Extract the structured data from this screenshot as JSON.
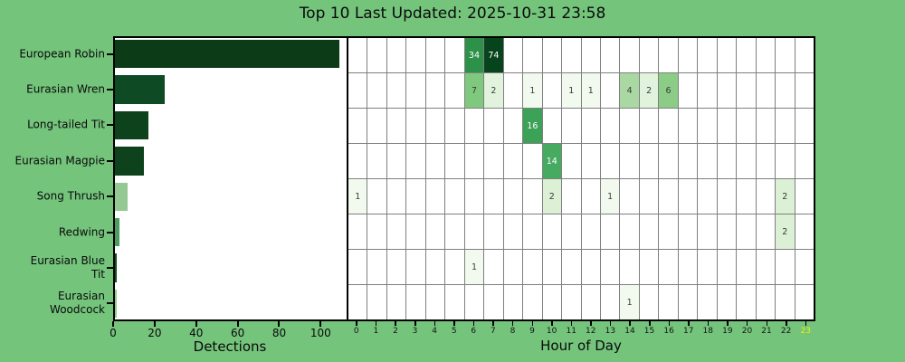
{
  "title": "Top 10 Last Updated: 2025-10-31 23:58",
  "colors": {
    "background": "#74c47c",
    "panel_bg": "#ffffff",
    "grid_line": "#7f7f7f",
    "spine": "#000000",
    "text": "#0a0a0a",
    "hour_highlight": "#ecf000"
  },
  "bar_chart": {
    "xlabel": "Detections",
    "x_ticks": [
      0,
      20,
      40,
      60,
      80,
      100
    ]
  },
  "heatmap": {
    "xlabel": "Hour of Day",
    "hour_labels": [
      "0",
      "1",
      "2",
      "3",
      "4",
      "5",
      "6",
      "7",
      "8",
      "9",
      "10",
      "11",
      "12",
      "13",
      "14",
      "15",
      "16",
      "17",
      "18",
      "19",
      "20",
      "21",
      "22",
      "23"
    ],
    "highlighted_hour": 23
  },
  "chart_data": [
    {
      "type": "bar",
      "orientation": "horizontal",
      "title": "Top 10 Last Updated: 2025-10-31 23:58",
      "categories": [
        "European Robin",
        "Eurasian Wren",
        "Long-tailed Tit",
        "Eurasian Magpie",
        "Song Thrush",
        "Redwing",
        "Eurasian Blue Tit",
        "Eurasian Woodcock"
      ],
      "category_label_lines": [
        [
          "European Robin"
        ],
        [
          "Eurasian Wren"
        ],
        [
          "Long-tailed Tit"
        ],
        [
          "Eurasian Magpie"
        ],
        [
          "Song Thrush"
        ],
        [
          "Redwing"
        ],
        [
          "Eurasian Blue",
          "Tit"
        ],
        [
          "Eurasian",
          "Woodcock"
        ]
      ],
      "values": [
        108,
        24,
        16,
        14,
        6,
        2,
        1,
        1
      ],
      "bar_colors": [
        "#0c3b17",
        "#0e4a23",
        "#0d421d",
        "#0d421d",
        "#94c994",
        "#4b9e60",
        "#12501f",
        "#8fcc8c"
      ],
      "xlabel": "Detections",
      "xlim": [
        0,
        112.5
      ],
      "x_ticks": [
        0,
        20,
        40,
        60,
        80,
        100
      ],
      "grid": false
    },
    {
      "type": "heatmap",
      "rows": [
        "European Robin",
        "Eurasian Wren",
        "Long-tailed Tit",
        "Eurasian Magpie",
        "Song Thrush",
        "Redwing",
        "Eurasian Blue Tit",
        "Eurasian Woodcock"
      ],
      "columns": [
        0,
        1,
        2,
        3,
        4,
        5,
        6,
        7,
        8,
        9,
        10,
        11,
        12,
        13,
        14,
        15,
        16,
        17,
        18,
        19,
        20,
        21,
        22,
        23
      ],
      "xlabel": "Hour of Day",
      "empty_cell_color": "#ffffff",
      "cells": [
        {
          "row": 0,
          "hour": 6,
          "value": 34,
          "bg": "#2e9149",
          "fg": "#ffffff"
        },
        {
          "row": 0,
          "hour": 7,
          "value": 74,
          "bg": "#07431b",
          "fg": "#ffffff"
        },
        {
          "row": 1,
          "hour": 6,
          "value": 7,
          "bg": "#7fc97f",
          "fg": "#3a3a3a"
        },
        {
          "row": 1,
          "hour": 7,
          "value": 2,
          "bg": "#e2f3dd",
          "fg": "#3a3a3a"
        },
        {
          "row": 1,
          "hour": 9,
          "value": 1,
          "bg": "#f2faef",
          "fg": "#3a3a3a"
        },
        {
          "row": 1,
          "hour": 11,
          "value": 1,
          "bg": "#f2faef",
          "fg": "#3a3a3a"
        },
        {
          "row": 1,
          "hour": 12,
          "value": 1,
          "bg": "#f2faef",
          "fg": "#3a3a3a"
        },
        {
          "row": 1,
          "hour": 14,
          "value": 4,
          "bg": "#a9d8a3",
          "fg": "#3a3a3a"
        },
        {
          "row": 1,
          "hour": 15,
          "value": 2,
          "bg": "#e2f3dd",
          "fg": "#3a3a3a"
        },
        {
          "row": 1,
          "hour": 16,
          "value": 6,
          "bg": "#8bcc87",
          "fg": "#3a3a3a"
        },
        {
          "row": 2,
          "hour": 9,
          "value": 16,
          "bg": "#3ba257",
          "fg": "#ffffff"
        },
        {
          "row": 3,
          "hour": 10,
          "value": 14,
          "bg": "#46aa60",
          "fg": "#ffffff"
        },
        {
          "row": 4,
          "hour": 0,
          "value": 1,
          "bg": "#f2faef",
          "fg": "#3a3a3a"
        },
        {
          "row": 4,
          "hour": 10,
          "value": 2,
          "bg": "#dbf0d5",
          "fg": "#3a3a3a"
        },
        {
          "row": 4,
          "hour": 13,
          "value": 1,
          "bg": "#f2faef",
          "fg": "#3a3a3a"
        },
        {
          "row": 4,
          "hour": 22,
          "value": 2,
          "bg": "#dbf0d5",
          "fg": "#3a3a3a"
        },
        {
          "row": 5,
          "hour": 22,
          "value": 2,
          "bg": "#dbf0d5",
          "fg": "#3a3a3a"
        },
        {
          "row": 6,
          "hour": 6,
          "value": 1,
          "bg": "#f2faef",
          "fg": "#3a3a3a"
        },
        {
          "row": 7,
          "hour": 14,
          "value": 1,
          "bg": "#f2faef",
          "fg": "#3a3a3a"
        }
      ]
    }
  ]
}
